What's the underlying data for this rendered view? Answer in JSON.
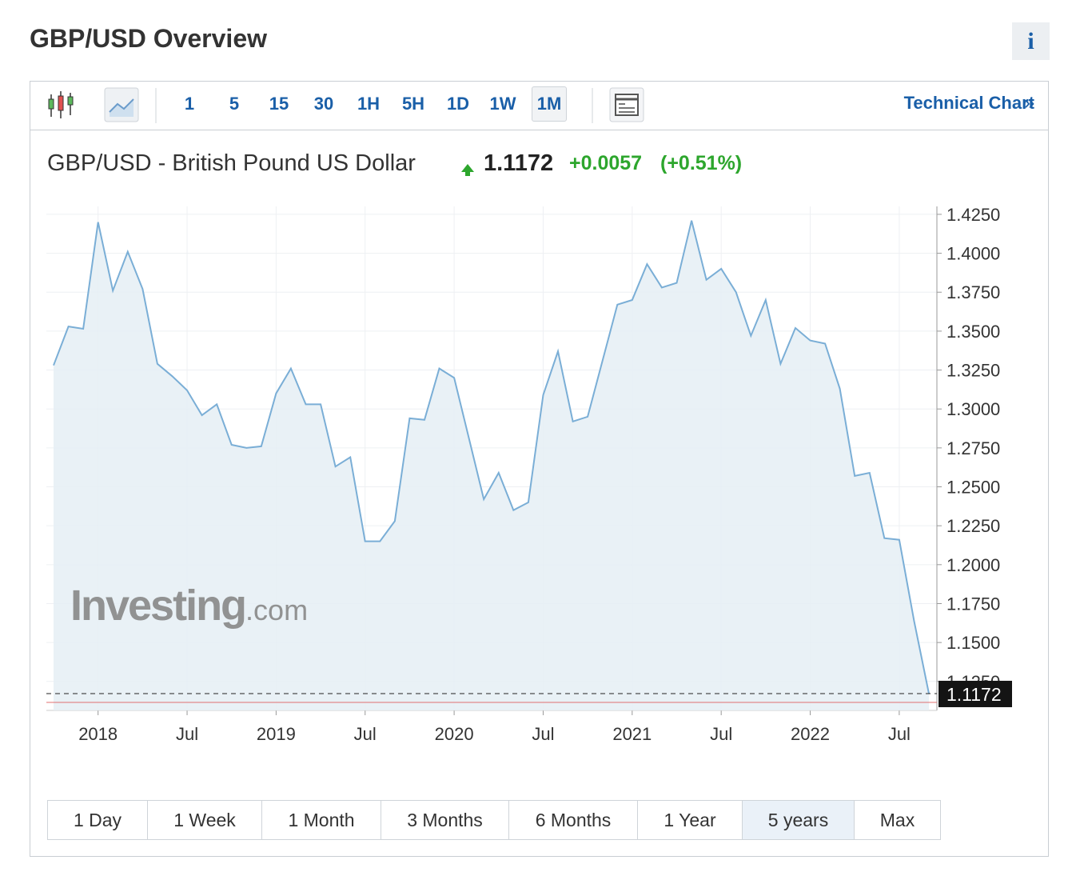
{
  "header": {
    "title": "GBP/USD Overview",
    "info": "i"
  },
  "toolbar": {
    "intervals": [
      "1",
      "5",
      "15",
      "30",
      "1H",
      "5H",
      "1D",
      "1W",
      "1M"
    ],
    "selected_interval": "1M",
    "link": "Technical Chart",
    "link_arrow": "»"
  },
  "quote": {
    "name": "GBP/USD - British Pound US Dollar",
    "price": "1.1172",
    "change": "+0.0057",
    "change_percent": "(+0.51%)"
  },
  "chart_data": {
    "type": "area",
    "categories": [
      null,
      null,
      null,
      "2018",
      null,
      null,
      null,
      null,
      null,
      "Jul",
      null,
      null,
      null,
      null,
      null,
      "2019",
      null,
      null,
      null,
      null,
      null,
      "Jul",
      null,
      null,
      null,
      null,
      null,
      "2020",
      null,
      null,
      null,
      null,
      null,
      "Jul",
      null,
      null,
      null,
      null,
      null,
      "2021",
      null,
      null,
      null,
      null,
      null,
      "Jul",
      null,
      null,
      null,
      null,
      null,
      "2022",
      null,
      null,
      null,
      null,
      null,
      "Jul",
      null,
      null
    ],
    "values": [
      1.328,
      1.353,
      1.3515,
      1.42,
      1.376,
      1.401,
      1.377,
      1.329,
      1.321,
      1.312,
      1.296,
      1.303,
      1.277,
      1.275,
      1.276,
      1.31,
      1.326,
      1.303,
      1.303,
      1.263,
      1.269,
      1.215,
      1.215,
      1.228,
      1.294,
      1.293,
      1.326,
      1.32,
      1.281,
      1.242,
      1.259,
      1.235,
      1.24,
      1.309,
      1.337,
      1.292,
      1.295,
      1.331,
      1.367,
      1.37,
      1.393,
      1.378,
      1.381,
      1.421,
      1.383,
      1.39,
      1.375,
      1.347,
      1.37,
      1.329,
      1.352,
      1.344,
      1.342,
      1.313,
      1.257,
      1.259,
      1.217,
      1.216,
      1.164,
      1.1172
    ],
    "color": "#7aaed6",
    "fill": "#e5eef5",
    "ylim": [
      1.1064,
      1.4301
    ],
    "yticks": [
      {
        "value": 1.125,
        "label": "1.1250"
      },
      {
        "value": 1.15,
        "label": "1.1500"
      },
      {
        "value": 1.175,
        "label": "1.1750"
      },
      {
        "value": 1.2,
        "label": "1.2000"
      },
      {
        "value": 1.225,
        "label": "1.2250"
      },
      {
        "value": 1.25,
        "label": "1.2500"
      },
      {
        "value": 1.275,
        "label": "1.2750"
      },
      {
        "value": 1.3,
        "label": "1.3000"
      },
      {
        "value": 1.325,
        "label": "1.3250"
      },
      {
        "value": 1.35,
        "label": "1.3500"
      },
      {
        "value": 1.375,
        "label": "1.3750"
      },
      {
        "value": 1.4,
        "label": "1.4000"
      },
      {
        "value": 1.425,
        "label": "1.4250"
      }
    ],
    "grid": true,
    "watermark": {
      "brand": "Investing",
      "suffix": ".com"
    }
  },
  "ranges": {
    "items": [
      "1 Day",
      "1 Week",
      "1 Month",
      "3 Months",
      "6 Months",
      "1 Year",
      "5 years",
      "Max"
    ],
    "selected": "5 years"
  }
}
